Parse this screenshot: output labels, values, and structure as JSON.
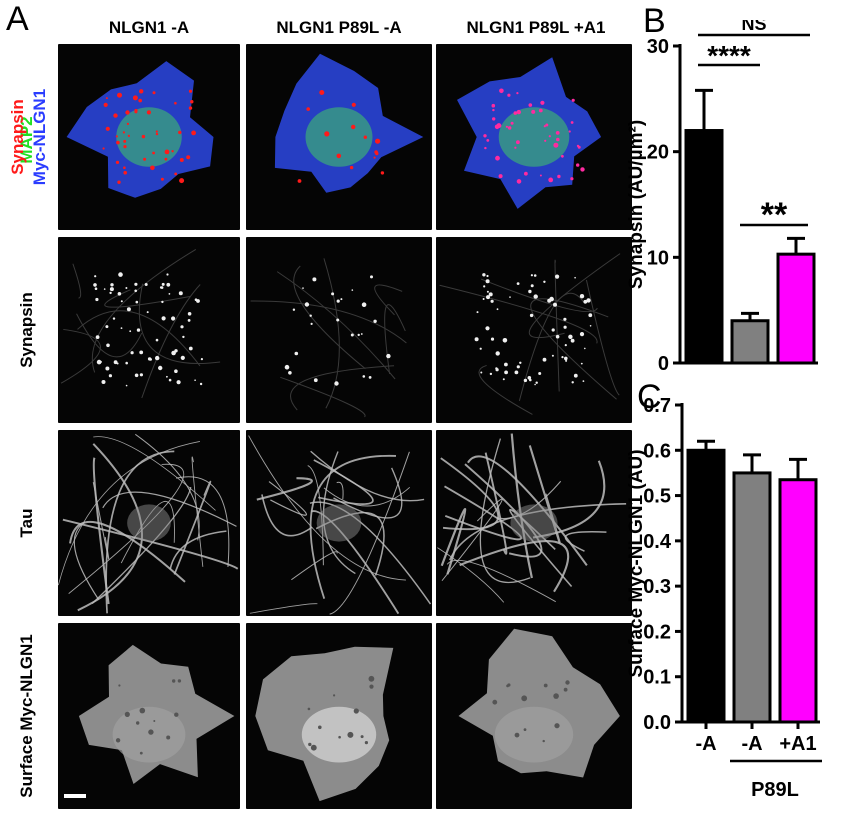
{
  "panels": {
    "A": "A",
    "B": "B",
    "C": "C"
  },
  "columns": [
    "NLGN1 -A",
    "NLGN1 P89L -A",
    "NLGN1 P89L +A1"
  ],
  "rows": {
    "merge": {
      "channels": [
        {
          "label": "Synapsin",
          "color": "#ff1a1a"
        },
        {
          "label": "MAP2",
          "color": "#22e022"
        },
        {
          "label": "Myc-NLGN1",
          "color": "#2a3cff"
        }
      ]
    },
    "synapsin": "Synapsin",
    "tau": "Tau",
    "surface": "Surface Myc-NLGN1"
  },
  "colors": {
    "black_bar": "#000000",
    "gray_bar": "#808080",
    "magenta_bar": "#ff00ff"
  },
  "chart_data": [
    {
      "panel": "B",
      "type": "bar",
      "categories": [
        "-A",
        "-A",
        "+A1"
      ],
      "values": [
        22.0,
        4.0,
        10.3
      ],
      "errors": [
        3.8,
        0.7,
        1.5
      ],
      "bar_colors": [
        "#000000",
        "#808080",
        "#ff00ff"
      ],
      "ylabel": "Synapsin (AU/µm²)",
      "ylim": [
        0,
        30
      ],
      "yticks": [
        "0",
        "10",
        "20",
        "30"
      ],
      "annotations": [
        "NS",
        "****",
        "**"
      ],
      "grid": false,
      "legend": "none"
    },
    {
      "panel": "C",
      "type": "bar",
      "categories": [
        "-A",
        "-A",
        "+A1"
      ],
      "values": [
        0.6,
        0.55,
        0.535
      ],
      "errors": [
        0.02,
        0.04,
        0.045
      ],
      "bar_colors": [
        "#000000",
        "#808080",
        "#ff00ff"
      ],
      "ylabel": "Surface Myc-NLGN1 (AU)",
      "ylim": [
        0,
        0.7
      ],
      "yticks": [
        "0.0",
        "0.1",
        "0.2",
        "0.3",
        "0.4",
        "0.5",
        "0.6",
        "0.7"
      ],
      "group_label": "P89L",
      "grid": false,
      "legend": "none"
    }
  ]
}
